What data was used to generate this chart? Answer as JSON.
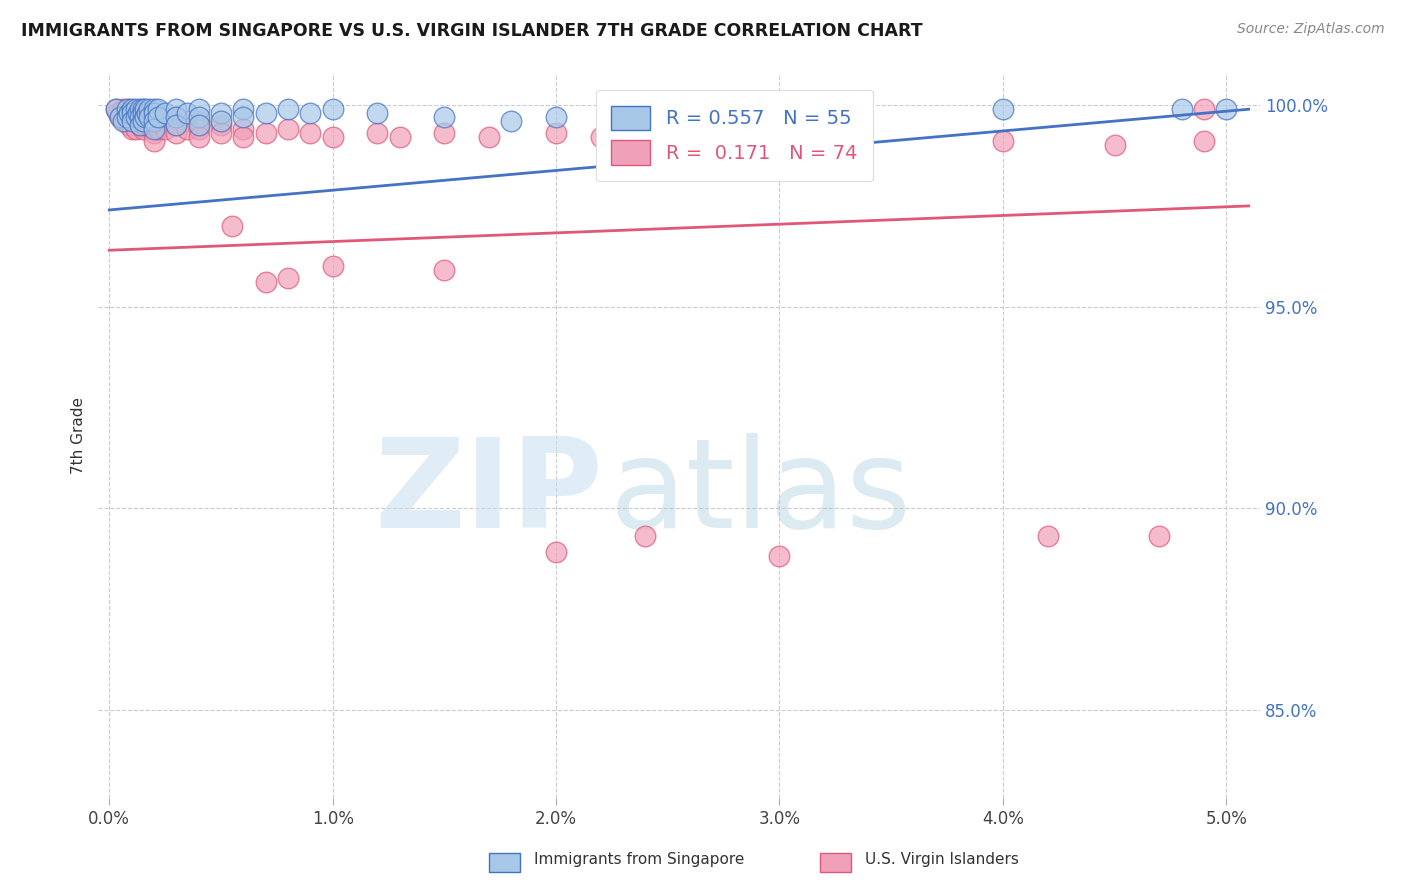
{
  "title": "IMMIGRANTS FROM SINGAPORE VS U.S. VIRGIN ISLANDER 7TH GRADE CORRELATION CHART",
  "source": "Source: ZipAtlas.com",
  "ylabel": "7th Grade",
  "y_tick_labels": [
    "85.0%",
    "90.0%",
    "95.0%",
    "100.0%"
  ],
  "y_tick_values": [
    0.85,
    0.9,
    0.95,
    1.0
  ],
  "x_tick_labels": [
    "0.0%",
    "1.0%",
    "2.0%",
    "3.0%",
    "4.0%",
    "5.0%"
  ],
  "x_tick_values": [
    0.0,
    0.01,
    0.02,
    0.03,
    0.04,
    0.05
  ],
  "legend_blue_label": "Immigrants from Singapore",
  "legend_pink_label": "U.S. Virgin Islanders",
  "blue_R": 0.557,
  "blue_N": 55,
  "pink_R": 0.171,
  "pink_N": 74,
  "blue_color": "#a8c8e8",
  "pink_color": "#f0a0b8",
  "blue_line_color": "#4472c4",
  "pink_line_color": "#e05878",
  "ylim": [
    0.828,
    1.008
  ],
  "xlim": [
    -0.0005,
    0.0515
  ],
  "figsize": [
    14.06,
    8.92
  ],
  "dpi": 100,
  "blue_points": [
    [
      0.0003,
      0.999
    ],
    [
      0.0005,
      0.997
    ],
    [
      0.0006,
      0.996
    ],
    [
      0.0008,
      0.999
    ],
    [
      0.0008,
      0.997
    ],
    [
      0.0009,
      0.998
    ],
    [
      0.001,
      0.999
    ],
    [
      0.001,
      0.998
    ],
    [
      0.001,
      0.996
    ],
    [
      0.0012,
      0.999
    ],
    [
      0.0012,
      0.997
    ],
    [
      0.0013,
      0.998
    ],
    [
      0.0014,
      0.999
    ],
    [
      0.0014,
      0.997
    ],
    [
      0.0014,
      0.995
    ],
    [
      0.0015,
      0.999
    ],
    [
      0.0015,
      0.998
    ],
    [
      0.0015,
      0.996
    ],
    [
      0.0016,
      0.999
    ],
    [
      0.0016,
      0.997
    ],
    [
      0.0017,
      0.998
    ],
    [
      0.0018,
      0.999
    ],
    [
      0.0018,
      0.997
    ],
    [
      0.002,
      0.999
    ],
    [
      0.002,
      0.998
    ],
    [
      0.002,
      0.996
    ],
    [
      0.002,
      0.994
    ],
    [
      0.0022,
      0.999
    ],
    [
      0.0022,
      0.997
    ],
    [
      0.0025,
      0.998
    ],
    [
      0.003,
      0.999
    ],
    [
      0.003,
      0.997
    ],
    [
      0.003,
      0.995
    ],
    [
      0.0035,
      0.998
    ],
    [
      0.004,
      0.999
    ],
    [
      0.004,
      0.997
    ],
    [
      0.004,
      0.995
    ],
    [
      0.005,
      0.998
    ],
    [
      0.005,
      0.996
    ],
    [
      0.006,
      0.999
    ],
    [
      0.006,
      0.997
    ],
    [
      0.007,
      0.998
    ],
    [
      0.008,
      0.999
    ],
    [
      0.009,
      0.998
    ],
    [
      0.01,
      0.999
    ],
    [
      0.012,
      0.998
    ],
    [
      0.015,
      0.997
    ],
    [
      0.018,
      0.996
    ],
    [
      0.02,
      0.997
    ],
    [
      0.025,
      0.998
    ],
    [
      0.03,
      0.999
    ],
    [
      0.033,
      0.999
    ],
    [
      0.04,
      0.999
    ],
    [
      0.048,
      0.999
    ],
    [
      0.05,
      0.999
    ]
  ],
  "pink_points": [
    [
      0.0003,
      0.999
    ],
    [
      0.0004,
      0.998
    ],
    [
      0.0005,
      0.997
    ],
    [
      0.0006,
      0.999
    ],
    [
      0.0006,
      0.997
    ],
    [
      0.0007,
      0.998
    ],
    [
      0.0007,
      0.996
    ],
    [
      0.0008,
      0.997
    ],
    [
      0.0009,
      0.999
    ],
    [
      0.0009,
      0.997
    ],
    [
      0.0009,
      0.995
    ],
    [
      0.001,
      0.998
    ],
    [
      0.001,
      0.996
    ],
    [
      0.001,
      0.994
    ],
    [
      0.0012,
      0.997
    ],
    [
      0.0012,
      0.996
    ],
    [
      0.0012,
      0.994
    ],
    [
      0.0013,
      0.998
    ],
    [
      0.0013,
      0.996
    ],
    [
      0.0014,
      0.997
    ],
    [
      0.0014,
      0.995
    ],
    [
      0.0015,
      0.998
    ],
    [
      0.0015,
      0.996
    ],
    [
      0.0015,
      0.994
    ],
    [
      0.0016,
      0.997
    ],
    [
      0.0016,
      0.995
    ],
    [
      0.0017,
      0.996
    ],
    [
      0.0018,
      0.997
    ],
    [
      0.0018,
      0.995
    ],
    [
      0.002,
      0.997
    ],
    [
      0.002,
      0.995
    ],
    [
      0.002,
      0.993
    ],
    [
      0.002,
      0.991
    ],
    [
      0.0022,
      0.996
    ],
    [
      0.0022,
      0.994
    ],
    [
      0.0025,
      0.996
    ],
    [
      0.0025,
      0.994
    ],
    [
      0.003,
      0.997
    ],
    [
      0.003,
      0.995
    ],
    [
      0.003,
      0.993
    ],
    [
      0.0035,
      0.996
    ],
    [
      0.0035,
      0.994
    ],
    [
      0.004,
      0.996
    ],
    [
      0.004,
      0.994
    ],
    [
      0.004,
      0.992
    ],
    [
      0.005,
      0.995
    ],
    [
      0.005,
      0.993
    ],
    [
      0.0055,
      0.97
    ],
    [
      0.006,
      0.994
    ],
    [
      0.006,
      0.992
    ],
    [
      0.007,
      0.993
    ],
    [
      0.007,
      0.956
    ],
    [
      0.008,
      0.994
    ],
    [
      0.008,
      0.957
    ],
    [
      0.009,
      0.993
    ],
    [
      0.01,
      0.992
    ],
    [
      0.01,
      0.96
    ],
    [
      0.012,
      0.993
    ],
    [
      0.013,
      0.992
    ],
    [
      0.015,
      0.993
    ],
    [
      0.015,
      0.959
    ],
    [
      0.017,
      0.992
    ],
    [
      0.02,
      0.993
    ],
    [
      0.02,
      0.889
    ],
    [
      0.022,
      0.992
    ],
    [
      0.024,
      0.893
    ],
    [
      0.028,
      0.993
    ],
    [
      0.03,
      0.888
    ],
    [
      0.04,
      0.991
    ],
    [
      0.042,
      0.893
    ],
    [
      0.045,
      0.99
    ],
    [
      0.047,
      0.893
    ],
    [
      0.049,
      0.999
    ],
    [
      0.049,
      0.991
    ]
  ]
}
